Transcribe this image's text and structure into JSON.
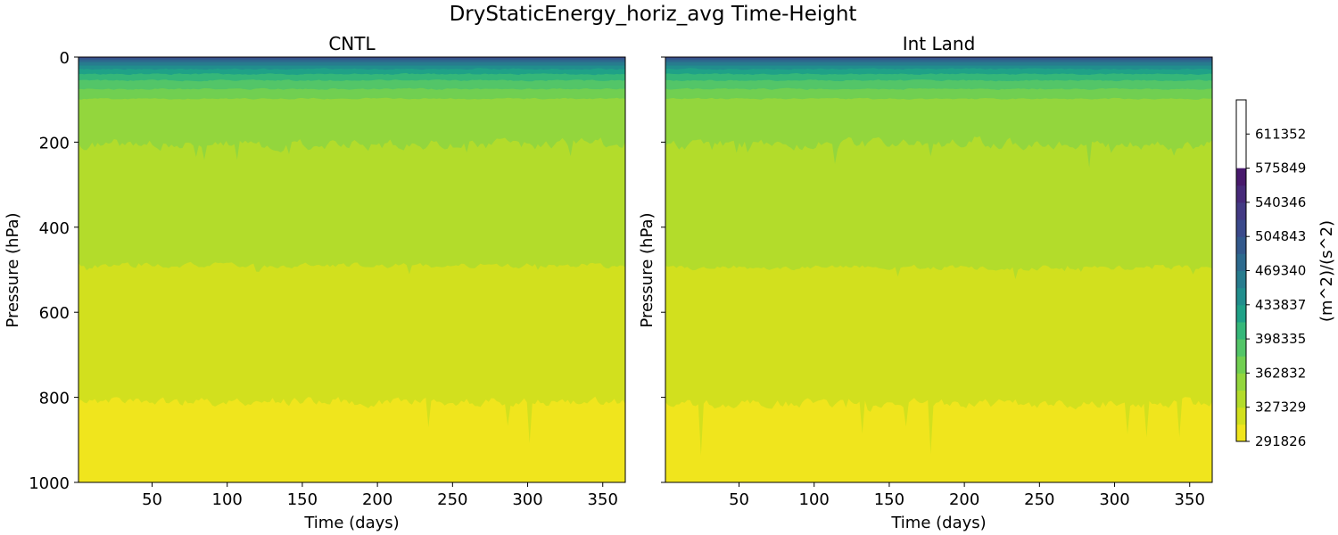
{
  "figure": {
    "title": "DryStaticEnergy_horiz_avg Time-Height"
  },
  "colors": {
    "band_0": "#f0e51d",
    "band_1": "#d2e01e",
    "band_2": "#b3dc2b",
    "band_3": "#93d63d",
    "band_4": "#71cf51",
    "band_5": "#53c568",
    "band_6": "#35b779",
    "band_7": "#1fa187",
    "band_8": "#218e8d",
    "band_9": "#277c8e",
    "band_10": "#2d6a8e",
    "band_11": "#33598c",
    "band_12": "#3b4a8b",
    "band_13": "#433a83",
    "band_14": "#472a79",
    "band_15": "#481a6c"
  },
  "chart_data": [
    {
      "type": "heatmap",
      "title": "CNTL",
      "xlabel": "Time (days)",
      "ylabel": "Pressure (hPa)",
      "xlim": [
        1,
        365
      ],
      "ylim": [
        1000,
        0
      ],
      "xticks": [
        50,
        100,
        150,
        200,
        250,
        300,
        350
      ],
      "yticks": [
        0,
        200,
        400,
        600,
        800,
        1000
      ],
      "contour_boundaries_hPa": [
        {
          "between": "291826-309577 / 309577-327329",
          "mean_pressure": 810,
          "variability": 25
        },
        {
          "between": "309577-327329 / 327329-345080",
          "mean_pressure": 490,
          "variability": 15
        },
        {
          "between": "327329-345080 / 345080-362832",
          "mean_pressure": 205,
          "variability": 30
        },
        {
          "between": "345080-362832 / 362832-380583",
          "mean_pressure": 98
        },
        {
          "between": "362832-380583 / 380583-398335",
          "mean_pressure": 75
        },
        {
          "between": "380583-398335 / 398335-416086",
          "mean_pressure": 55
        },
        {
          "between": "398335-416086 / 416086-433837",
          "mean_pressure": 40
        },
        {
          "between": "upper layers",
          "mean_pressure": 28
        }
      ]
    },
    {
      "type": "heatmap",
      "title": "Int Land",
      "xlabel": "Time (days)",
      "ylabel": "Pressure (hPa)",
      "xlim": [
        1,
        365
      ],
      "ylim": [
        1000,
        0
      ],
      "xticks": [
        50,
        100,
        150,
        200,
        250,
        300,
        350
      ],
      "yticks": [
        0,
        200,
        400,
        600,
        800,
        1000
      ],
      "contour_boundaries_hPa": [
        {
          "between": "291826-309577 / 309577-327329",
          "mean_pressure": 815,
          "variability": 25
        },
        {
          "between": "309577-327329 / 327329-345080",
          "mean_pressure": 495,
          "variability": 15
        },
        {
          "between": "327329-345080 / 345080-362832",
          "mean_pressure": 205,
          "variability": 30
        },
        {
          "between": "345080-362832 / 362832-380583",
          "mean_pressure": 98
        },
        {
          "between": "362832-380583 / 380583-398335",
          "mean_pressure": 75
        },
        {
          "between": "380583-398335 / 398335-416086",
          "mean_pressure": 55
        },
        {
          "between": "398335-416086 / 416086-433837",
          "mean_pressure": 40
        },
        {
          "between": "upper layers",
          "mean_pressure": 28
        }
      ]
    }
  ],
  "colorbar": {
    "label": "(m^2)/(s^2)",
    "min": 291826,
    "max": 646855,
    "tick_labels": [
      "291826",
      "327329",
      "362832",
      "398335",
      "433837",
      "469340",
      "504843",
      "540346",
      "575849",
      "611352"
    ],
    "tick_values": [
      291826,
      327329,
      362832,
      398335,
      433837,
      469340,
      504843,
      540346,
      575849,
      611352
    ]
  }
}
